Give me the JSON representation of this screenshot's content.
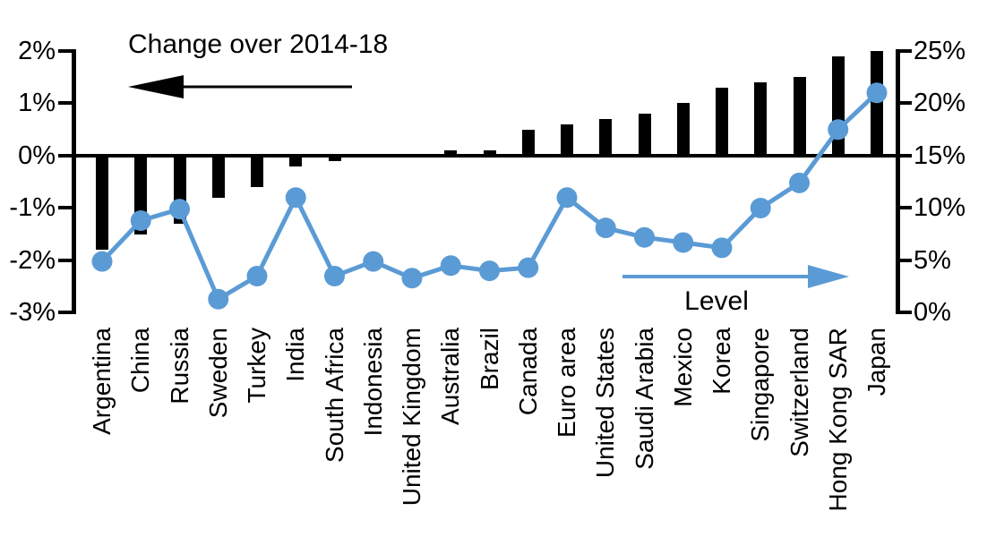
{
  "chart_data": {
    "type": "combo_bar_line",
    "title": "",
    "grid": false,
    "categories": [
      "Argentina",
      "China",
      "Russia",
      "Sweden",
      "Turkey",
      "India",
      "South Africa",
      "Indonesia",
      "United Kingdom",
      "Australia",
      "Brazil",
      "Canada",
      "Euro area",
      "United States",
      "Saudi Arabia",
      "Mexico",
      "Korea",
      "Singapore",
      "Switzerland",
      "Hong Kong SAR",
      "Japan"
    ],
    "series": [
      {
        "name": "Change over 2014-18",
        "type": "bar",
        "axis": "left",
        "color": "#000000",
        "unit": "%",
        "values": [
          -1.8,
          -1.5,
          -1.3,
          -0.8,
          -0.6,
          -0.2,
          -0.1,
          0,
          0,
          0.1,
          0.1,
          0.5,
          0.6,
          0.7,
          0.8,
          1.0,
          1.3,
          1.4,
          1.5,
          1.9,
          2.0
        ]
      },
      {
        "name": "Level",
        "type": "line",
        "axis": "right",
        "color": "#5b9bd5",
        "unit": "%",
        "values": [
          4.9,
          8.8,
          9.9,
          1.3,
          3.5,
          11.0,
          3.5,
          4.9,
          3.3,
          4.5,
          4.0,
          4.3,
          11.0,
          8.1,
          7.2,
          6.7,
          6.2,
          10.0,
          12.4,
          17.5,
          21.0
        ]
      }
    ],
    "left_axis": {
      "min": -3,
      "max": 2,
      "tick_values": [
        2,
        1,
        0,
        -1,
        -2,
        -3
      ],
      "tick_labels": [
        "2%",
        "1%",
        "0%",
        "-1%",
        "-2%",
        "-3%"
      ]
    },
    "right_axis": {
      "min": 0,
      "max": 25,
      "tick_values": [
        25,
        20,
        15,
        10,
        5,
        0
      ],
      "tick_labels": [
        "25%",
        "20%",
        "15%",
        "10%",
        "5%",
        "0%"
      ]
    },
    "annotations": {
      "change_label": "Change over 2014-18",
      "level_label": "Level"
    },
    "colors": {
      "bar": "#000000",
      "line": "#5b9bd5",
      "axis": "#000000"
    }
  }
}
